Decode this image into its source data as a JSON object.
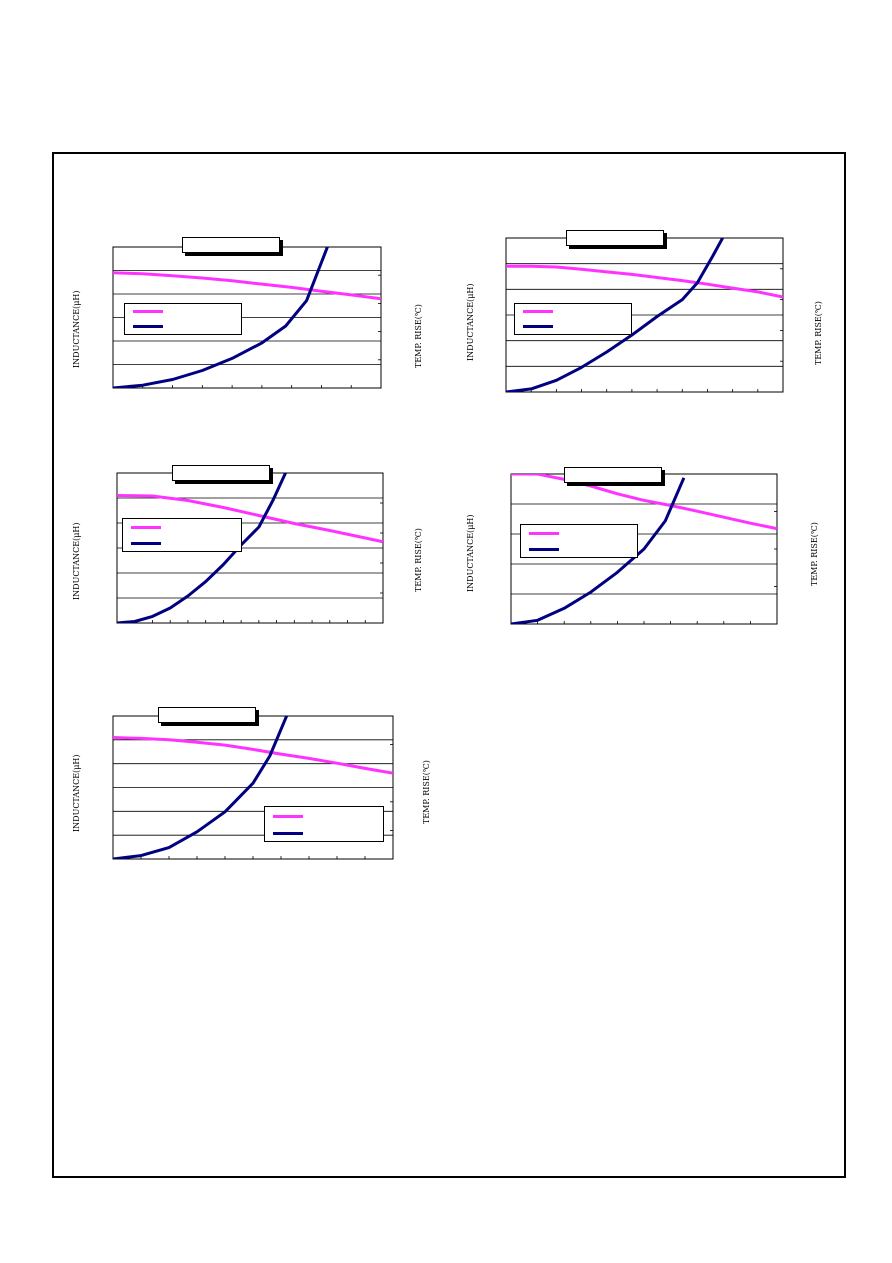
{
  "page": {
    "colors": {
      "inductance": "#ff33ff",
      "temp_rise": "#000080",
      "border": "#000000"
    }
  },
  "chart_data": [
    {
      "type": "line",
      "title": "",
      "ylabel": "INDUCTANCE(μH)",
      "y2label": "TEMP. RISE(℃)",
      "xlim": [
        0,
        9
      ],
      "ylim": [
        0,
        6
      ],
      "y2lim": [
        0,
        5
      ],
      "x_ticks": 9,
      "y_ticks": 6,
      "y2_ticks": 5,
      "grid": true,
      "legend": "left",
      "series": [
        {
          "name": "",
          "color": "#ff33ff",
          "axis": "left",
          "x": [
            0,
            1,
            2,
            3,
            4,
            5,
            6,
            7,
            8,
            9
          ],
          "y": [
            4.9,
            4.86,
            4.78,
            4.68,
            4.56,
            4.42,
            4.28,
            4.12,
            3.96,
            3.8
          ]
        },
        {
          "name": "",
          "color": "#000080",
          "axis": "right",
          "x": [
            0,
            1,
            2,
            3,
            4,
            5,
            5.8,
            6.5,
            7.2
          ],
          "y": [
            0,
            0.1,
            0.3,
            0.62,
            1.05,
            1.6,
            2.2,
            3.1,
            5.0
          ]
        }
      ]
    },
    {
      "type": "line",
      "title": "",
      "ylabel": "INDUCTANCE(μH)",
      "y2label": "TEMP. RISE(℃)",
      "xlim": [
        0,
        11
      ],
      "ylim": [
        0,
        6
      ],
      "y2lim": [
        0,
        5
      ],
      "x_ticks": 11,
      "y_ticks": 6,
      "y2_ticks": 5,
      "grid": true,
      "legend": "left",
      "series": [
        {
          "name": "",
          "color": "#ff33ff",
          "axis": "left",
          "x": [
            0,
            1,
            2,
            3,
            4,
            5,
            6,
            7,
            8,
            9,
            10,
            11
          ],
          "y": [
            4.9,
            4.9,
            4.87,
            4.78,
            4.68,
            4.58,
            4.46,
            4.34,
            4.2,
            4.05,
            3.9,
            3.7
          ]
        },
        {
          "name": "",
          "color": "#000080",
          "axis": "right",
          "x": [
            0,
            1,
            2,
            3,
            4,
            5,
            6,
            7,
            7.6,
            8.2,
            8.6
          ],
          "y": [
            0,
            0.1,
            0.38,
            0.8,
            1.3,
            1.85,
            2.45,
            3.0,
            3.55,
            4.4,
            5.0
          ]
        }
      ]
    },
    {
      "type": "line",
      "title": "",
      "ylabel": "INDUCTANCE(μH)",
      "y2label": "TEMP. RISE(℃)",
      "xlim": [
        0,
        15
      ],
      "ylim": [
        0,
        6
      ],
      "y2lim": [
        0,
        5
      ],
      "x_ticks": 15,
      "y_ticks": 6,
      "y2_ticks": 5,
      "grid": true,
      "legend": "left",
      "series": [
        {
          "name": "",
          "color": "#ff33ff",
          "axis": "left",
          "x": [
            0,
            2,
            4,
            6,
            8,
            10,
            12,
            14,
            15
          ],
          "y": [
            5.1,
            5.08,
            4.9,
            4.62,
            4.3,
            3.98,
            3.7,
            3.4,
            3.25
          ]
        },
        {
          "name": "",
          "color": "#000080",
          "axis": "right",
          "x": [
            0,
            1,
            2,
            3,
            4,
            5,
            6,
            7,
            8,
            8.8,
            9.5
          ],
          "y": [
            0,
            0.05,
            0.22,
            0.5,
            0.9,
            1.38,
            1.95,
            2.6,
            3.2,
            4.1,
            5.0
          ]
        }
      ]
    },
    {
      "type": "line",
      "title": "",
      "ylabel": "INDUCTANCE(μH)",
      "y2label": "TEMP. RISE(℃)",
      "xlim": [
        0,
        10
      ],
      "ylim": [
        0,
        5
      ],
      "y2lim": [
        0,
        4
      ],
      "x_ticks": 10,
      "y_ticks": 5,
      "y2_ticks": 4,
      "grid": true,
      "legend": "left",
      "series": [
        {
          "name": "",
          "color": "#ff33ff",
          "axis": "left",
          "x": [
            0,
            1,
            2,
            3,
            4,
            5,
            6,
            7,
            8,
            9,
            10
          ],
          "y": [
            5.0,
            5.0,
            4.82,
            4.6,
            4.34,
            4.12,
            3.95,
            3.76,
            3.56,
            3.36,
            3.18
          ]
        },
        {
          "name": "",
          "color": "#000080",
          "axis": "right",
          "x": [
            0,
            1,
            2,
            3,
            4,
            5,
            5.8,
            6.5
          ],
          "y": [
            0,
            0.1,
            0.42,
            0.85,
            1.38,
            2.0,
            2.75,
            3.9
          ]
        }
      ]
    },
    {
      "type": "line",
      "title": "",
      "ylabel": "INDUCTANCE(μH)",
      "y2label": "TEMP. RISE(℃)",
      "xlim": [
        0,
        10
      ],
      "ylim": [
        0,
        6
      ],
      "y2lim": [
        0,
        5
      ],
      "x_ticks": 10,
      "y_ticks": 6,
      "y2_ticks": 5,
      "grid": true,
      "legend": "right",
      "series": [
        {
          "name": "",
          "color": "#ff33ff",
          "axis": "left",
          "x": [
            0,
            1,
            2,
            3,
            4,
            5,
            6,
            7,
            8,
            9,
            10
          ],
          "y": [
            5.1,
            5.06,
            5.0,
            4.9,
            4.78,
            4.6,
            4.4,
            4.22,
            4.02,
            3.8,
            3.6
          ]
        },
        {
          "name": "",
          "color": "#000080",
          "axis": "right",
          "x": [
            0,
            1,
            2,
            3,
            4,
            5,
            5.6,
            6.2
          ],
          "y": [
            0,
            0.12,
            0.4,
            0.95,
            1.65,
            2.65,
            3.6,
            5.0
          ]
        }
      ]
    }
  ]
}
